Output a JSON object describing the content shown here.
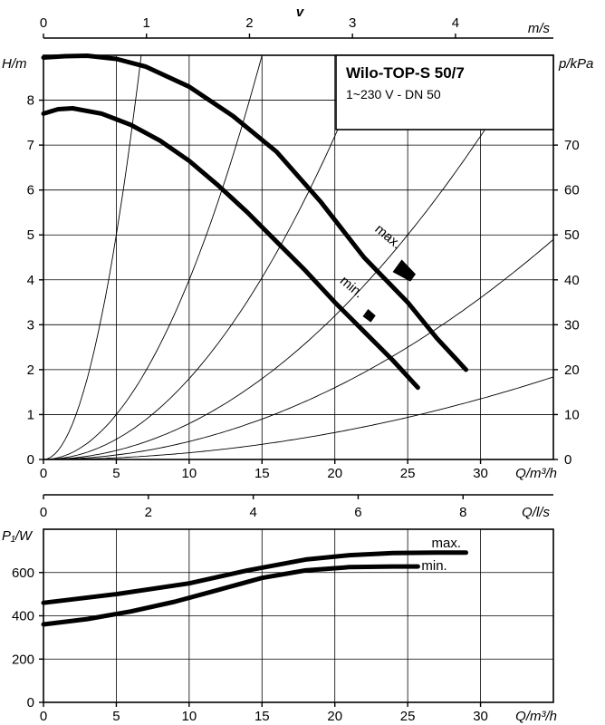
{
  "chart_data": [
    {
      "type": "line",
      "title": "Wilo-TOP-S 50/7",
      "subtitle": "1~230 V - DN 50",
      "xlabel": "Q/m³/h",
      "ylabel": "H/m",
      "y2label": "p/kPa",
      "top_axis_label": "m/s",
      "top_axis_symbol": "v",
      "xlim": [
        0,
        35
      ],
      "ylim": [
        0,
        9
      ],
      "y2lim": [
        0,
        90
      ],
      "xticks": [
        0,
        5,
        10,
        15,
        20,
        25,
        30
      ],
      "yticks": [
        0,
        1,
        2,
        3,
        4,
        5,
        6,
        7,
        8
      ],
      "y2ticks": [
        0,
        10,
        20,
        30,
        40,
        50,
        60,
        70
      ],
      "top_ticks": [
        {
          "label": "0",
          "q": 0
        },
        {
          "label": "1",
          "q": 7.07
        },
        {
          "label": "2",
          "q": 14.14
        },
        {
          "label": "3",
          "q": 21.21
        },
        {
          "label": "4",
          "q": 28.28
        }
      ],
      "series": [
        {
          "name": "max.",
          "x": [
            0,
            1.5,
            3,
            5,
            7,
            10,
            13,
            16,
            19,
            22,
            25,
            27,
            29
          ],
          "y": [
            8.95,
            8.98,
            8.99,
            8.92,
            8.75,
            8.3,
            7.65,
            6.85,
            5.75,
            4.5,
            3.5,
            2.7,
            2.0
          ]
        },
        {
          "name": "min.",
          "x": [
            0,
            1,
            2,
            4,
            6,
            8,
            10,
            12,
            14,
            16,
            18,
            20,
            22,
            24,
            25.7
          ],
          "y": [
            7.7,
            7.8,
            7.82,
            7.7,
            7.45,
            7.1,
            6.65,
            6.1,
            5.5,
            4.85,
            4.2,
            3.5,
            2.85,
            2.2,
            1.6
          ]
        }
      ],
      "system_curves_k": [
        0.2,
        0.04,
        0.018,
        0.008,
        0.004,
        0.0015
      ],
      "annotations": [
        "max.",
        "min."
      ]
    },
    {
      "type": "line",
      "xlabel": "Q/m³/h",
      "ylabel": "P₁/W",
      "top_axis_label": "Q/l/s",
      "xlim": [
        0,
        35
      ],
      "ylim": [
        0,
        800
      ],
      "xticks": [
        0,
        5,
        10,
        15,
        20,
        25,
        30
      ],
      "yticks": [
        0,
        200,
        400,
        600
      ],
      "top_ticks": [
        {
          "label": "0",
          "q": 0
        },
        {
          "label": "2",
          "q": 7.2
        },
        {
          "label": "4",
          "q": 14.4
        },
        {
          "label": "6",
          "q": 21.6
        },
        {
          "label": "8",
          "q": 28.8
        }
      ],
      "series": [
        {
          "name": "max.",
          "x": [
            0,
            5,
            10,
            14,
            18,
            21,
            24,
            27,
            29
          ],
          "y": [
            460,
            500,
            550,
            610,
            660,
            680,
            690,
            692,
            692
          ]
        },
        {
          "name": "min.",
          "x": [
            0,
            3,
            6,
            9,
            12,
            15,
            18,
            21,
            24,
            25.7
          ],
          "y": [
            360,
            385,
            420,
            465,
            520,
            575,
            610,
            625,
            628,
            628
          ]
        }
      ]
    }
  ]
}
